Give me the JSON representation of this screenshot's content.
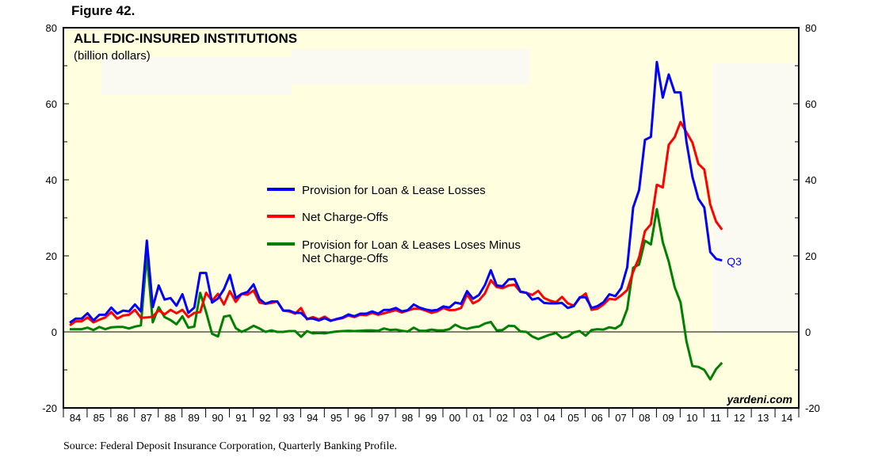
{
  "figure_label": "Figure 42.",
  "source": "Source: Federal Deposit Insurance Corporation, Quarterly Banking Profile.",
  "watermark": "yardeni.com",
  "chart_data": {
    "type": "line",
    "title": "ALL FDIC-INSURED INSTITUTIONS",
    "subtitle": "(billion dollars)",
    "frequency": "quarterly",
    "x_start": "1984 Q1",
    "x_end": "2011 Q3",
    "x_tick_labels": [
      "84",
      "85",
      "86",
      "87",
      "88",
      "89",
      "90",
      "91",
      "92",
      "93",
      "94",
      "95",
      "96",
      "97",
      "98",
      "99",
      "00",
      "01",
      "02",
      "03",
      "04",
      "05",
      "06",
      "07",
      "08",
      "09",
      "10",
      "11",
      "12",
      "13",
      "14"
    ],
    "xlim": [
      "1984",
      "2014"
    ],
    "ylim": [
      -20,
      80
    ],
    "y_tick_labels": [
      "-20",
      "0",
      "20",
      "40",
      "60",
      "80"
    ],
    "y_axes": "left and right",
    "grid": false,
    "zero_line": true,
    "legend_placement": "center",
    "end_annotation": "Q3",
    "colors": {
      "background": "#FFFFE0",
      "provision": "#0000FF",
      "net_charge_offs": "#FF0000",
      "difference": "#008000"
    },
    "series": [
      {
        "name": "Provision for Loan & Lease Losses",
        "color": "#0000FF",
        "values": [
          2.4,
          3.5,
          3.5,
          4.9,
          3,
          4.5,
          4.5,
          6.4,
          4.8,
          5.6,
          5.4,
          7.2,
          5.4,
          24,
          6.5,
          12.2,
          8.5,
          8.9,
          6.9,
          9.9,
          5,
          6.4,
          15.5,
          15.5,
          7.7,
          8.8,
          11.2,
          15,
          8.9,
          10,
          10.5,
          12.5,
          8.6,
          7.4,
          8,
          8,
          5.6,
          5.6,
          5,
          5,
          3.5,
          3.5,
          3,
          3.6,
          2.9,
          3.4,
          3.8,
          4.6,
          4.1,
          4.8,
          4.8,
          5.4,
          4.8,
          5.8,
          5.8,
          6.3,
          5.4,
          5.7,
          7.2,
          6.4,
          5.9,
          5.6,
          5.8,
          6.7,
          6.4,
          7.7,
          7.4,
          10.7,
          8.7,
          9.7,
          12.3,
          16.2,
          12.2,
          12,
          13.8,
          13.9,
          10.6,
          10.3,
          8.5,
          8.9,
          7.6,
          7.5,
          7.5,
          7.6,
          6.3,
          6.8,
          9.1,
          9.1,
          6.3,
          6.8,
          7.8,
          9.9,
          9.4,
          11.5,
          17,
          32.7,
          37.3,
          50.5,
          51.3,
          71,
          61.6,
          67.7,
          63,
          63,
          50,
          40.8,
          35,
          32.7,
          21,
          19.2,
          18.8
        ]
      },
      {
        "name": "Net Charge-Offs",
        "color": "#FF0000",
        "values": [
          1.7,
          2.8,
          2.8,
          3.8,
          2.5,
          3.2,
          3.8,
          5.2,
          3.5,
          4.3,
          4.5,
          5.8,
          3.7,
          3.8,
          4,
          5.7,
          4.6,
          5.8,
          4.9,
          5.8,
          3.9,
          5,
          5.2,
          10.3,
          8.2,
          10,
          7.2,
          10.7,
          7.9,
          10,
          9.8,
          10.9,
          7.7,
          7.4,
          7.6,
          8,
          5.6,
          5.4,
          4.8,
          6.3,
          3.3,
          3.9,
          3.3,
          4,
          3,
          3.3,
          3.6,
          4.3,
          3.9,
          4.5,
          4.4,
          5,
          4.5,
          4.9,
          5.3,
          5.7,
          5.1,
          5.6,
          6.1,
          6.1,
          5.6,
          5,
          5.4,
          6.3,
          5.7,
          5.8,
          6.3,
          9.9,
          7.5,
          8.3,
          10.1,
          13.6,
          11.8,
          11.5,
          12.2,
          12.4,
          10.5,
          10.3,
          9.7,
          10.8,
          8.9,
          8.2,
          7.8,
          9.2,
          7.5,
          6.9,
          8.9,
          10.1,
          5.8,
          6.1,
          7.2,
          8.7,
          8.5,
          9.6,
          11,
          15.8,
          19.6,
          26.5,
          28.3,
          38.7,
          38,
          49.2,
          51.2,
          55.2,
          52.5,
          49.8,
          44.2,
          42.7,
          33.5,
          29,
          26.9
        ]
      },
      {
        "name": "Provision for Loan & Leases Loses Minus Net Charge-Offs",
        "name_lines": [
          "Provision for Loan & Leases Loses Minus",
          "Net Charge-Offs"
        ],
        "color": "#008000",
        "values": [
          0.7,
          0.7,
          0.7,
          1.1,
          0.5,
          1.3,
          0.7,
          1.2,
          1.3,
          1.3,
          0.9,
          1.4,
          1.7,
          20.2,
          2.5,
          6.5,
          3.9,
          3.1,
          2,
          4.1,
          1.1,
          1.4,
          10.3,
          5.2,
          -0.5,
          -1.2,
          4,
          4.3,
          1,
          0,
          0.7,
          1.6,
          0.9,
          0,
          0.4,
          0,
          0,
          0.2,
          0.2,
          -1.3,
          0.2,
          -0.4,
          -0.3,
          -0.4,
          -0.1,
          0.1,
          0.2,
          0.3,
          0.2,
          0.3,
          0.4,
          0.4,
          0.3,
          0.9,
          0.5,
          0.6,
          0.3,
          0.1,
          1.1,
          0.3,
          0.3,
          0.6,
          0.4,
          0.4,
          0.7,
          1.9,
          1.1,
          0.8,
          1.2,
          1.4,
          2.2,
          2.6,
          0.4,
          0.5,
          1.6,
          1.5,
          0.1,
          0,
          -1.2,
          -1.9,
          -1.3,
          -0.7,
          -0.3,
          -1.6,
          -1.2,
          -0.1,
          0.2,
          -1,
          0.5,
          0.7,
          0.6,
          1.2,
          0.9,
          1.9,
          6,
          16.9,
          17.7,
          24,
          23,
          32.3,
          23.6,
          18.5,
          11.8,
          7.8,
          -2.5,
          -9,
          -9.2,
          -10,
          -12.5,
          -9.8,
          -8.1
        ]
      }
    ]
  }
}
